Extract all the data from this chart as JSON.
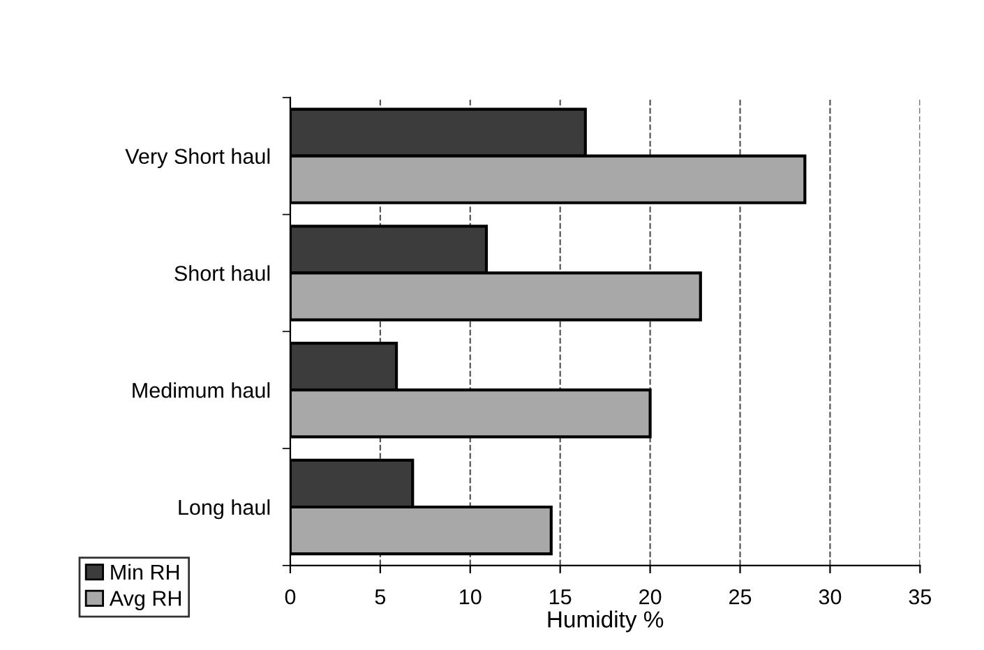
{
  "chart_data": {
    "type": "bar",
    "orientation": "horizontal",
    "xlabel": "Humidity %",
    "categories": [
      "Very Short haul",
      "Short haul",
      "Medimum haul",
      "Long haul"
    ],
    "series": [
      {
        "name": "Min RH",
        "color": "#3c3c3c",
        "values": [
          16.4,
          10.9,
          5.9,
          6.8
        ]
      },
      {
        "name": "Avg RH",
        "color": "#a8a8a8",
        "values": [
          28.6,
          22.8,
          20.0,
          14.5
        ]
      }
    ],
    "xlim": [
      0,
      35
    ],
    "xticks": [
      0,
      5,
      10,
      15,
      20,
      25,
      30,
      35
    ],
    "grid": "x",
    "legend": "bottom left"
  }
}
